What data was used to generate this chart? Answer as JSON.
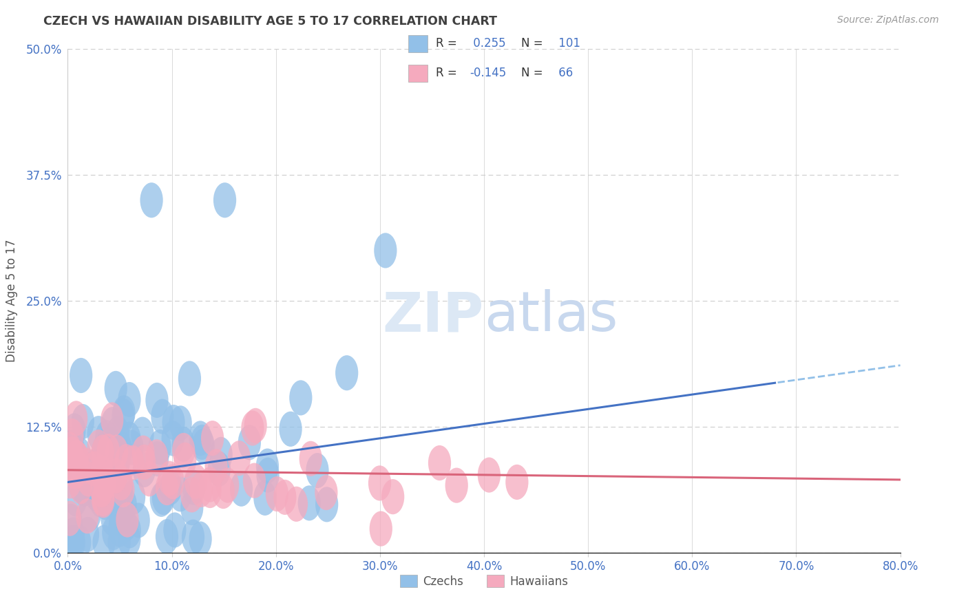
{
  "title": "CZECH VS HAWAIIAN DISABILITY AGE 5 TO 17 CORRELATION CHART",
  "source_text": "Source: ZipAtlas.com",
  "ylabel": "Disability Age 5 to 17",
  "xlim": [
    0.0,
    80.0
  ],
  "ylim": [
    0.0,
    50.0
  ],
  "yticks": [
    0.0,
    12.5,
    25.0,
    37.5,
    50.0
  ],
  "xticks": [
    0.0,
    10.0,
    20.0,
    30.0,
    40.0,
    50.0,
    60.0,
    70.0,
    80.0
  ],
  "czech_R": 0.255,
  "czech_N": 101,
  "hawaiian_R": -0.145,
  "hawaiian_N": 66,
  "czech_color": "#92C0E8",
  "hawaiian_color": "#F5AABE",
  "czech_line_color": "#4472C4",
  "hawaiian_line_color": "#D9647A",
  "trend_dash_color": "#92C0E8",
  "background_color": "#FFFFFF",
  "grid_color": "#CCCCCC",
  "title_color": "#404040",
  "axis_label_color": "#4472C4",
  "watermark_color": "#DCE8F5",
  "czech_line_intercept": 7.0,
  "czech_line_slope": 0.145,
  "hawaiian_line_intercept": 8.2,
  "hawaiian_line_slope": -0.012,
  "solid_end_x": 68.0
}
